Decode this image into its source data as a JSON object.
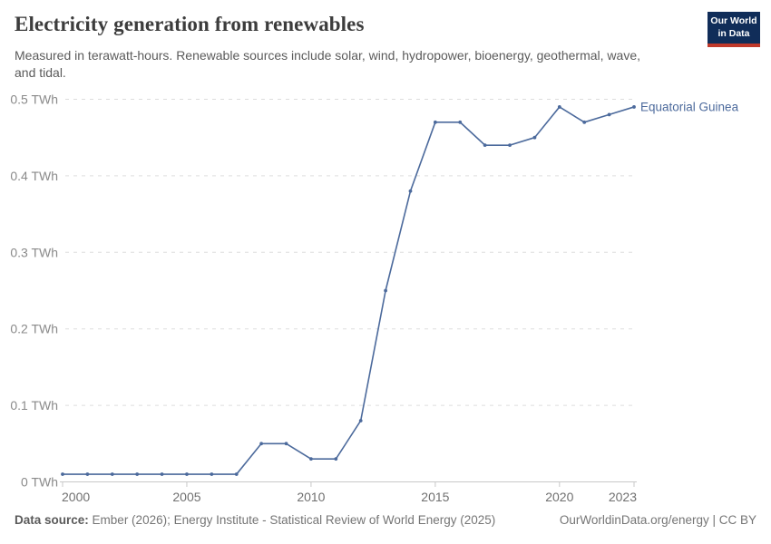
{
  "header": {
    "title": "Electricity generation from renewables",
    "subtitle": "Measured in terawatt-hours. Renewable sources include solar, wind, hydropower, bioenergy, geothermal, wave, and tidal.",
    "logo": {
      "line1": "Our World",
      "line2": "in Data"
    }
  },
  "chart_data": {
    "type": "line",
    "title": "Electricity generation from renewables",
    "x": [
      2000,
      2001,
      2002,
      2003,
      2004,
      2005,
      2006,
      2007,
      2008,
      2009,
      2010,
      2011,
      2012,
      2013,
      2014,
      2015,
      2016,
      2017,
      2018,
      2019,
      2020,
      2021,
      2022,
      2023
    ],
    "series": [
      {
        "name": "Equatorial Guinea",
        "color": "#4C6A9C",
        "values": [
          0.01,
          0.01,
          0.01,
          0.01,
          0.01,
          0.01,
          0.01,
          0.01,
          0.05,
          0.05,
          0.03,
          0.03,
          0.08,
          0.25,
          0.38,
          0.47,
          0.47,
          0.44,
          0.44,
          0.45,
          0.49,
          0.47,
          0.48,
          0.49
        ]
      }
    ],
    "xlim": [
      2000,
      2023
    ],
    "ylim": [
      0,
      0.5
    ],
    "x_ticks": [
      2000,
      2005,
      2010,
      2015,
      2020,
      2023
    ],
    "y_ticks": [
      0,
      0.1,
      0.2,
      0.3,
      0.4,
      0.5
    ],
    "y_unit": "TWh",
    "grid": "horizontal-dashed",
    "legend_position": "end-of-line-label"
  },
  "footer": {
    "datasource_label": "Data source:",
    "datasource_text": "Ember (2026); Energy Institute - Statistical Review of World Energy (2025)",
    "attribution": "OurWorldinData.org/energy | CC BY"
  },
  "colors": {
    "line": "#4C6A9C",
    "grid": "#dddddd",
    "axis": "#c8c8c8",
    "y_tick_label": "#8a8a8a",
    "x_tick_label": "#707070",
    "title": "#3c3c3c",
    "subtitle": "#5b5b5b",
    "footer": "#757575",
    "logo_bg": "#102d59",
    "logo_red": "#c0392b"
  }
}
